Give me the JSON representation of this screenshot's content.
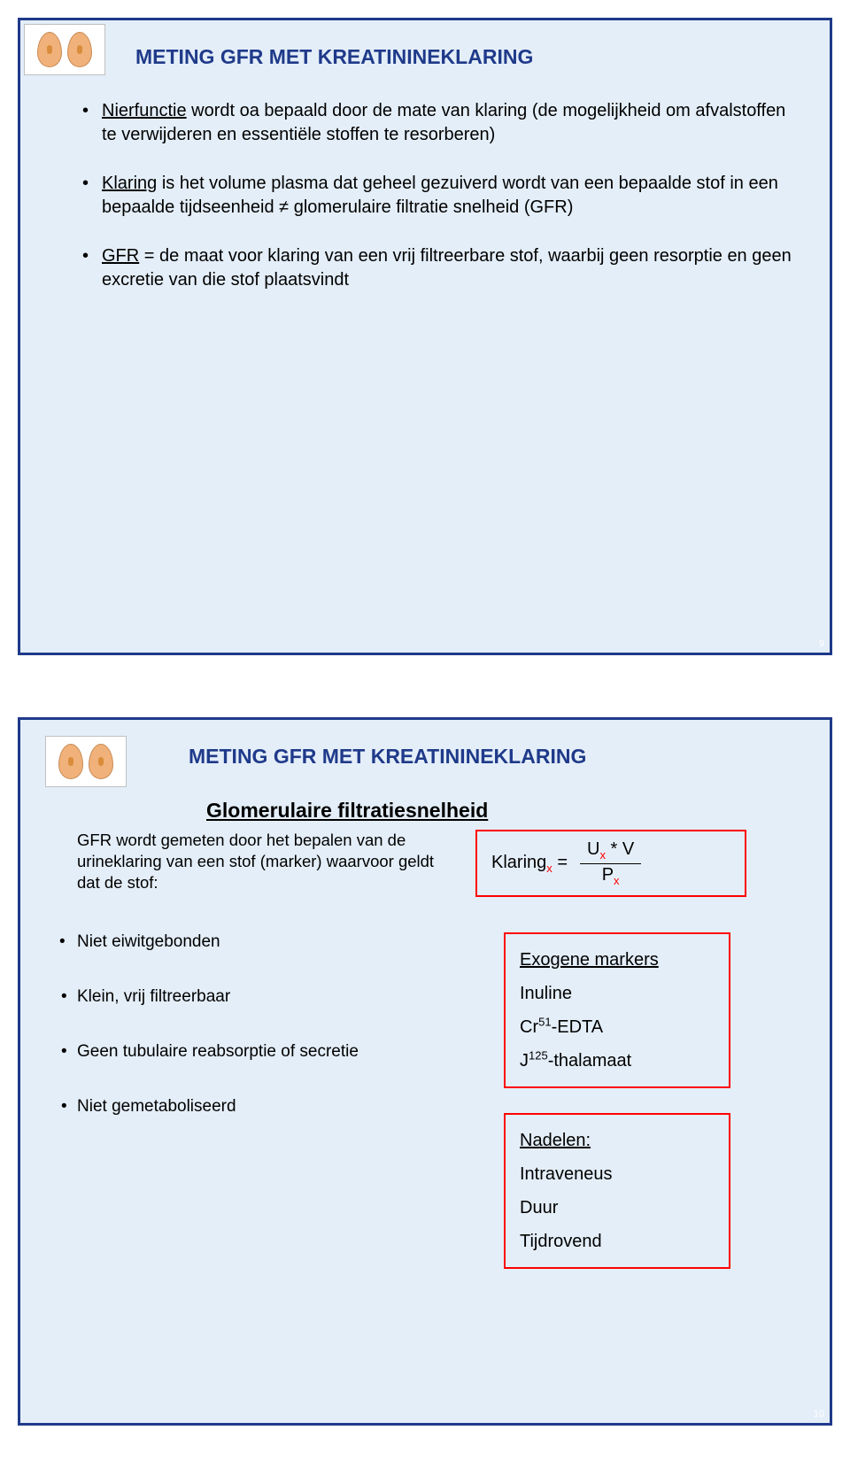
{
  "slide1": {
    "title": "METING GFR MET KREATININEKLARING",
    "bullets": [
      {
        "lead": "Nierfunctie",
        "rest": " wordt oa bepaald door de mate van klaring (de mogelijkheid om afvalstoffen te verwijderen en essentiële stoffen te resorberen)"
      },
      {
        "lead": "Klaring",
        "rest": " is het volume plasma dat geheel gezuiverd wordt van een bepaalde stof in een bepaalde tijdseenheid ≠ glomerulaire filtratie snelheid (GFR)"
      },
      {
        "lead": "GFR",
        "rest": " = de maat voor klaring van een vrij filtreerbare stof, waarbij geen resorptie en geen excretie van die stof plaatsvindt"
      }
    ],
    "page": "9"
  },
  "slide2": {
    "title": "METING GFR MET KREATININEKLARING",
    "subtitle": "Glomerulaire filtratiesnelheid",
    "intro": "GFR wordt gemeten door het bepalen van de urineklaring van een stof (marker) waarvoor geldt dat de stof:",
    "formula": {
      "lhs": "Klaring",
      "top_u": "U",
      "top_rest": " * V",
      "bot": "P"
    },
    "criteria": [
      "Niet eiwitgebonden",
      "Klein, vrij filtreerbaar",
      "Geen tubulaire reabsorptie of secretie",
      "Niet gemetaboliseerd"
    ],
    "markers": {
      "heading": "Exogene markers",
      "items": [
        "Inuline",
        "Cr⁵¹-EDTA",
        "J¹²⁵-thalamaat"
      ],
      "cr_label": "Cr",
      "cr_sup": "51",
      "cr_rest": "-EDTA",
      "j_label": "J",
      "j_sup": "125",
      "j_rest": "-thalamaat",
      "inuline": "Inuline"
    },
    "nadelen": {
      "heading": "Nadelen:",
      "items": [
        "Intraveneus",
        "Duur",
        "Tijdrovend"
      ]
    },
    "page": "10"
  },
  "colors": {
    "border": "#1f3a8a",
    "bg": "#e4eef8",
    "accent": "#ff0000"
  }
}
